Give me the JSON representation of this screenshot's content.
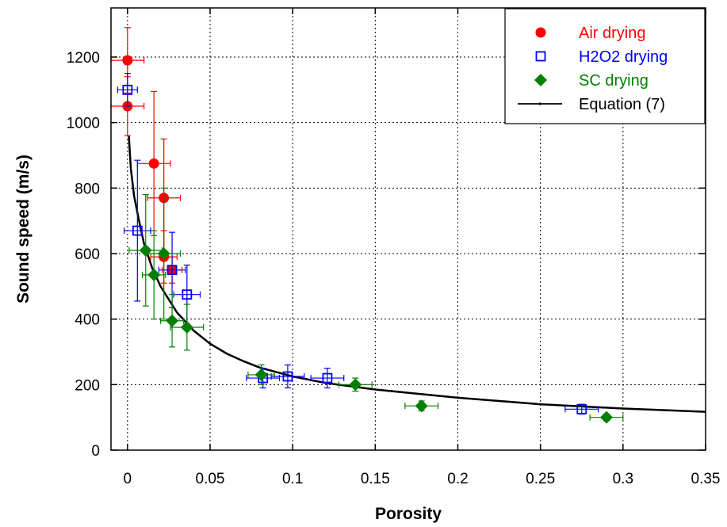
{
  "chart_data": {
    "type": "scatter",
    "xlabel": "Porosity",
    "ylabel": "Sound speed (m/s)",
    "xlim": [
      -0.01,
      0.35
    ],
    "ylim": [
      0,
      1350
    ],
    "xticks": [
      0,
      0.05,
      0.1,
      0.15,
      0.2,
      0.25,
      0.3,
      0.35
    ],
    "xtick_labels": [
      "0",
      "0.05",
      "0.1",
      "0.15",
      "0.2",
      "0.25",
      "0.3",
      "0.35"
    ],
    "yticks": [
      0,
      200,
      400,
      600,
      800,
      1000,
      1200
    ],
    "ytick_labels": [
      "0",
      "200",
      "400",
      "600",
      "800",
      "1000",
      "1200"
    ],
    "grid": true,
    "legend_position": "top-right",
    "series": [
      {
        "name": "Air drying",
        "marker": "circle",
        "color": "#ff0000",
        "points": [
          {
            "x": 0.0,
            "y": 1190,
            "xerr": 0.01,
            "yerr": 100
          },
          {
            "x": 0.0,
            "y": 1050,
            "xerr": 0.01,
            "yerr": 90
          },
          {
            "x": 0.016,
            "y": 875,
            "xerr": 0.01,
            "yerr": 220
          },
          {
            "x": 0.022,
            "y": 770,
            "xerr": 0.01,
            "yerr": 180
          },
          {
            "x": 0.022,
            "y": 590,
            "xerr": 0.008,
            "yerr": 80
          },
          {
            "x": 0.027,
            "y": 550,
            "xerr": 0.006,
            "yerr": 40
          }
        ]
      },
      {
        "name": "H2O2 drying",
        "marker": "square-open",
        "color": "#0000ff",
        "points": [
          {
            "x": 0.0,
            "y": 1100,
            "xerr": 0.006,
            "yerr": 50
          },
          {
            "x": 0.006,
            "y": 670,
            "xerr": 0.008,
            "yerr": 215
          },
          {
            "x": 0.027,
            "y": 550,
            "xerr": 0.008,
            "yerr": 115
          },
          {
            "x": 0.036,
            "y": 475,
            "xerr": 0.008,
            "yerr": 90
          },
          {
            "x": 0.082,
            "y": 220,
            "xerr": 0.01,
            "yerr": 30
          },
          {
            "x": 0.097,
            "y": 225,
            "xerr": 0.01,
            "yerr": 35
          },
          {
            "x": 0.121,
            "y": 220,
            "xerr": 0.01,
            "yerr": 30
          },
          {
            "x": 0.275,
            "y": 125,
            "xerr": 0.01,
            "yerr": 15
          }
        ]
      },
      {
        "name": "SC drying",
        "marker": "diamond",
        "color": "#008000",
        "points": [
          {
            "x": 0.011,
            "y": 610,
            "xerr": 0.01,
            "yerr": 170
          },
          {
            "x": 0.016,
            "y": 535,
            "xerr": 0.007,
            "yerr": 135
          },
          {
            "x": 0.022,
            "y": 600,
            "xerr": 0.01,
            "yerr": 200
          },
          {
            "x": 0.027,
            "y": 395,
            "xerr": 0.007,
            "yerr": 80
          },
          {
            "x": 0.036,
            "y": 375,
            "xerr": 0.01,
            "yerr": 70
          },
          {
            "x": 0.081,
            "y": 230,
            "xerr": 0.008,
            "yerr": 30
          },
          {
            "x": 0.138,
            "y": 200,
            "xerr": 0.01,
            "yerr": 20
          },
          {
            "x": 0.178,
            "y": 135,
            "xerr": 0.01,
            "yerr": 15
          },
          {
            "x": 0.29,
            "y": 100,
            "xerr": 0.01,
            "yerr": 10
          }
        ]
      },
      {
        "name": "Equation (7)",
        "marker": "line",
        "color": "#000000",
        "points": [
          {
            "x": 0.0008,
            "y": 960
          },
          {
            "x": 0.002,
            "y": 860
          },
          {
            "x": 0.004,
            "y": 775
          },
          {
            "x": 0.007,
            "y": 700
          },
          {
            "x": 0.01,
            "y": 630
          },
          {
            "x": 0.015,
            "y": 555
          },
          {
            "x": 0.02,
            "y": 500
          },
          {
            "x": 0.03,
            "y": 420
          },
          {
            "x": 0.04,
            "y": 365
          },
          {
            "x": 0.05,
            "y": 325
          },
          {
            "x": 0.06,
            "y": 295
          },
          {
            "x": 0.07,
            "y": 272
          },
          {
            "x": 0.08,
            "y": 252
          },
          {
            "x": 0.1,
            "y": 225
          },
          {
            "x": 0.12,
            "y": 205
          },
          {
            "x": 0.15,
            "y": 185
          },
          {
            "x": 0.2,
            "y": 160
          },
          {
            "x": 0.25,
            "y": 140
          },
          {
            "x": 0.3,
            "y": 127
          },
          {
            "x": 0.35,
            "y": 117
          }
        ]
      }
    ]
  }
}
